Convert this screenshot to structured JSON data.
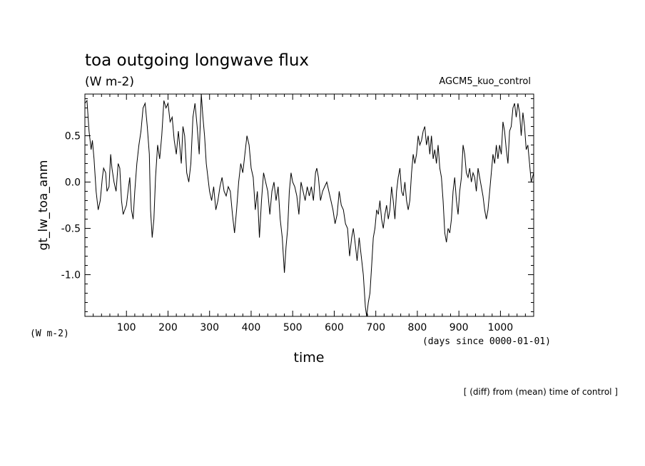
{
  "chart_data": {
    "type": "line",
    "title": "toa outgoing longwave flux",
    "subtitle_units": "(W m-2)",
    "experiment": "AGCM5_kuo_control",
    "ylabel": "gt_lw_toa_anm",
    "y_units": "(W m-2)",
    "xlabel": "time",
    "x_units": "(days since 0000-01-01)",
    "footnote": "[ (diff) from (mean) time of control ]",
    "xlim": [
      0,
      1080
    ],
    "ylim": [
      -1.45,
      0.95
    ],
    "x_ticks": [
      "100",
      "200",
      "300",
      "400",
      "500",
      "600",
      "700",
      "800",
      "900",
      "1000"
    ],
    "y_ticks": [
      "0.5",
      "0.0",
      "-0.5",
      "-1.0"
    ],
    "grid": false,
    "series": [
      {
        "color": "#000000",
        "points": [
          [
            0,
            0.85
          ],
          [
            5,
            0.88
          ],
          [
            10,
            0.55
          ],
          [
            15,
            0.35
          ],
          [
            18,
            0.45
          ],
          [
            22,
            0.25
          ],
          [
            27,
            -0.1
          ],
          [
            32,
            -0.3
          ],
          [
            37,
            -0.2
          ],
          [
            42,
            0.05
          ],
          [
            45,
            0.15
          ],
          [
            50,
            0.1
          ],
          [
            53,
            -0.1
          ],
          [
            58,
            -0.05
          ],
          [
            62,
            0.3
          ],
          [
            65,
            0.15
          ],
          [
            70,
            0.0
          ],
          [
            75,
            -0.1
          ],
          [
            80,
            0.2
          ],
          [
            84,
            0.15
          ],
          [
            88,
            -0.2
          ],
          [
            92,
            -0.35
          ],
          [
            96,
            -0.3
          ],
          [
            100,
            -0.25
          ],
          [
            105,
            -0.05
          ],
          [
            108,
            0.05
          ],
          [
            112,
            -0.3
          ],
          [
            116,
            -0.4
          ],
          [
            120,
            -0.1
          ],
          [
            125,
            0.2
          ],
          [
            130,
            0.4
          ],
          [
            135,
            0.55
          ],
          [
            140,
            0.8
          ],
          [
            145,
            0.85
          ],
          [
            150,
            0.6
          ],
          [
            155,
            0.3
          ],
          [
            158,
            -0.3
          ],
          [
            162,
            -0.6
          ],
          [
            166,
            -0.4
          ],
          [
            170,
            0.05
          ],
          [
            175,
            0.4
          ],
          [
            180,
            0.25
          ],
          [
            185,
            0.5
          ],
          [
            190,
            0.88
          ],
          [
            195,
            0.8
          ],
          [
            200,
            0.85
          ],
          [
            205,
            0.65
          ],
          [
            210,
            0.7
          ],
          [
            215,
            0.45
          ],
          [
            220,
            0.3
          ],
          [
            225,
            0.55
          ],
          [
            228,
            0.4
          ],
          [
            232,
            0.2
          ],
          [
            236,
            0.6
          ],
          [
            240,
            0.5
          ],
          [
            245,
            0.1
          ],
          [
            250,
            0.0
          ],
          [
            255,
            0.2
          ],
          [
            260,
            0.7
          ],
          [
            265,
            0.85
          ],
          [
            270,
            0.6
          ],
          [
            275,
            0.3
          ],
          [
            280,
            0.95
          ],
          [
            284,
            0.7
          ],
          [
            288,
            0.5
          ],
          [
            292,
            0.2
          ],
          [
            296,
            0.05
          ],
          [
            300,
            -0.1
          ],
          [
            305,
            -0.2
          ],
          [
            310,
            -0.05
          ],
          [
            315,
            -0.3
          ],
          [
            320,
            -0.2
          ],
          [
            325,
            -0.05
          ],
          [
            330,
            0.05
          ],
          [
            335,
            -0.1
          ],
          [
            340,
            -0.15
          ],
          [
            345,
            -0.05
          ],
          [
            350,
            -0.1
          ],
          [
            355,
            -0.35
          ],
          [
            360,
            -0.55
          ],
          [
            365,
            -0.3
          ],
          [
            370,
            0.0
          ],
          [
            375,
            0.2
          ],
          [
            380,
            0.1
          ],
          [
            385,
            0.3
          ],
          [
            390,
            0.5
          ],
          [
            395,
            0.4
          ],
          [
            400,
            0.15
          ],
          [
            405,
            0.05
          ],
          [
            410,
            -0.3
          ],
          [
            415,
            -0.1
          ],
          [
            420,
            -0.6
          ],
          [
            425,
            -0.2
          ],
          [
            430,
            0.1
          ],
          [
            435,
            0.0
          ],
          [
            440,
            -0.1
          ],
          [
            445,
            -0.35
          ],
          [
            450,
            -0.1
          ],
          [
            455,
            0.0
          ],
          [
            460,
            -0.2
          ],
          [
            465,
            -0.05
          ],
          [
            470,
            -0.4
          ],
          [
            475,
            -0.6
          ],
          [
            480,
            -0.98
          ],
          [
            484,
            -0.7
          ],
          [
            488,
            -0.5
          ],
          [
            492,
            -0.1
          ],
          [
            496,
            0.1
          ],
          [
            500,
            0.0
          ],
          [
            505,
            -0.05
          ],
          [
            510,
            -0.15
          ],
          [
            515,
            -0.35
          ],
          [
            520,
            0.0
          ],
          [
            525,
            -0.1
          ],
          [
            530,
            -0.2
          ],
          [
            535,
            -0.05
          ],
          [
            540,
            -0.15
          ],
          [
            545,
            -0.05
          ],
          [
            550,
            -0.2
          ],
          [
            555,
            0.1
          ],
          [
            558,
            0.15
          ],
          [
            562,
            0.05
          ],
          [
            567,
            -0.2
          ],
          [
            572,
            -0.1
          ],
          [
            577,
            -0.05
          ],
          [
            582,
            0.0
          ],
          [
            587,
            -0.1
          ],
          [
            592,
            -0.2
          ],
          [
            597,
            -0.3
          ],
          [
            602,
            -0.45
          ],
          [
            607,
            -0.35
          ],
          [
            612,
            -0.1
          ],
          [
            617,
            -0.25
          ],
          [
            622,
            -0.3
          ],
          [
            627,
            -0.45
          ],
          [
            632,
            -0.5
          ],
          [
            637,
            -0.8
          ],
          [
            642,
            -0.6
          ],
          [
            646,
            -0.5
          ],
          [
            650,
            -0.65
          ],
          [
            655,
            -0.85
          ],
          [
            660,
            -0.6
          ],
          [
            665,
            -0.8
          ],
          [
            670,
            -1.0
          ],
          [
            675,
            -1.35
          ],
          [
            678,
            -1.45
          ],
          [
            682,
            -1.3
          ],
          [
            686,
            -1.2
          ],
          [
            690,
            -0.9
          ],
          [
            694,
            -0.6
          ],
          [
            698,
            -0.5
          ],
          [
            702,
            -0.3
          ],
          [
            706,
            -0.35
          ],
          [
            710,
            -0.2
          ],
          [
            714,
            -0.4
          ],
          [
            718,
            -0.5
          ],
          [
            722,
            -0.35
          ],
          [
            726,
            -0.25
          ],
          [
            730,
            -0.4
          ],
          [
            734,
            -0.3
          ],
          [
            738,
            -0.05
          ],
          [
            742,
            -0.2
          ],
          [
            746,
            -0.4
          ],
          [
            750,
            -0.1
          ],
          [
            754,
            0.05
          ],
          [
            758,
            0.15
          ],
          [
            762,
            -0.1
          ],
          [
            766,
            -0.15
          ],
          [
            770,
            0.0
          ],
          [
            774,
            -0.2
          ],
          [
            778,
            -0.3
          ],
          [
            782,
            -0.2
          ],
          [
            786,
            0.1
          ],
          [
            790,
            0.3
          ],
          [
            794,
            0.2
          ],
          [
            798,
            0.3
          ],
          [
            802,
            0.5
          ],
          [
            806,
            0.4
          ],
          [
            810,
            0.45
          ],
          [
            814,
            0.55
          ],
          [
            818,
            0.6
          ],
          [
            822,
            0.4
          ],
          [
            826,
            0.5
          ],
          [
            830,
            0.3
          ],
          [
            834,
            0.5
          ],
          [
            838,
            0.25
          ],
          [
            842,
            0.35
          ],
          [
            846,
            0.2
          ],
          [
            850,
            0.4
          ],
          [
            854,
            0.15
          ],
          [
            858,
            0.05
          ],
          [
            862,
            -0.2
          ],
          [
            866,
            -0.55
          ],
          [
            870,
            -0.65
          ],
          [
            874,
            -0.5
          ],
          [
            878,
            -0.55
          ],
          [
            882,
            -0.4
          ],
          [
            886,
            -0.1
          ],
          [
            890,
            0.05
          ],
          [
            894,
            -0.2
          ],
          [
            898,
            -0.35
          ],
          [
            902,
            -0.1
          ],
          [
            906,
            0.05
          ],
          [
            910,
            0.4
          ],
          [
            914,
            0.3
          ],
          [
            918,
            0.1
          ],
          [
            922,
            0.05
          ],
          [
            926,
            0.15
          ],
          [
            930,
            0.0
          ],
          [
            934,
            0.1
          ],
          [
            938,
            0.05
          ],
          [
            942,
            -0.1
          ],
          [
            946,
            0.15
          ],
          [
            950,
            0.05
          ],
          [
            954,
            -0.05
          ],
          [
            958,
            -0.15
          ],
          [
            962,
            -0.3
          ],
          [
            966,
            -0.4
          ],
          [
            970,
            -0.3
          ],
          [
            974,
            -0.1
          ],
          [
            978,
            0.1
          ],
          [
            982,
            0.3
          ],
          [
            986,
            0.2
          ],
          [
            990,
            0.4
          ],
          [
            994,
            0.25
          ],
          [
            998,
            0.4
          ],
          [
            1002,
            0.3
          ],
          [
            1006,
            0.65
          ],
          [
            1010,
            0.55
          ],
          [
            1014,
            0.35
          ],
          [
            1018,
            0.2
          ],
          [
            1022,
            0.55
          ],
          [
            1026,
            0.6
          ],
          [
            1030,
            0.8
          ],
          [
            1034,
            0.85
          ],
          [
            1038,
            0.7
          ],
          [
            1042,
            0.85
          ],
          [
            1046,
            0.75
          ],
          [
            1050,
            0.5
          ],
          [
            1054,
            0.75
          ],
          [
            1058,
            0.6
          ],
          [
            1062,
            0.35
          ],
          [
            1066,
            0.4
          ],
          [
            1070,
            0.2
          ],
          [
            1074,
            0.0
          ],
          [
            1077,
            0.05
          ],
          [
            1080,
            0.1
          ]
        ]
      }
    ]
  }
}
